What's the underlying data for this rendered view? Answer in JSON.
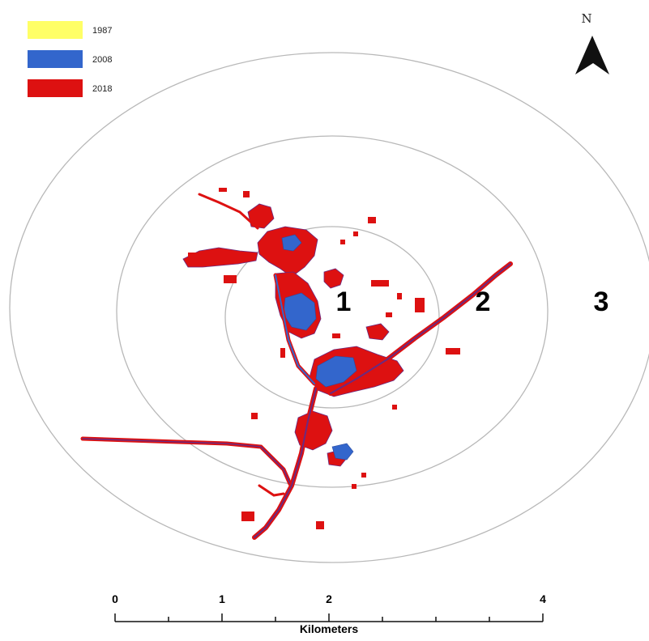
{
  "legend": [
    {
      "label": "1987",
      "color": "#ffff66"
    },
    {
      "label": "2008",
      "color": "#3366cc"
    },
    {
      "label": "2018",
      "color": "#dd1111"
    }
  ],
  "north_arrow": {
    "label": "N",
    "icon": "north-arrow-icon"
  },
  "zones": [
    "1",
    "2",
    "3"
  ],
  "scale_bar": {
    "title": "Kilometers",
    "labels": [
      "0",
      "1",
      "2",
      "4"
    ]
  },
  "colors": {
    "ring": "#b8b8b8",
    "growth_2008": "#3366cc",
    "growth_2018": "#dd1111",
    "mixed": "#6a2a80"
  }
}
